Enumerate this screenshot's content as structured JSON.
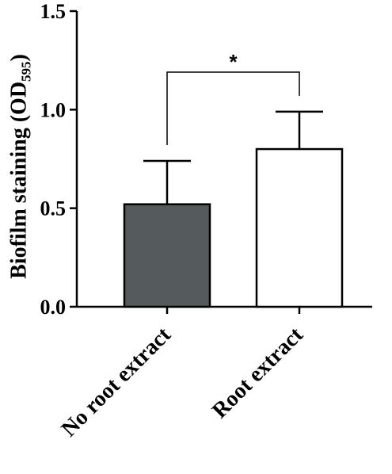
{
  "chart_data": {
    "type": "bar",
    "ylabel": "Biofilm staining (OD",
    "ylabel_subscript": "595",
    "ylabel_close": ")",
    "categories": [
      "No root extract",
      "Root extract"
    ],
    "values": [
      0.52,
      0.8
    ],
    "error_upper": [
      0.22,
      0.19
    ],
    "bar_colors": [
      "#555a5c",
      "#ffffff"
    ],
    "ylim": [
      0,
      1.5
    ],
    "yticks": [
      0.0,
      0.5,
      1.0,
      1.5
    ],
    "ytick_labels": [
      "0.0",
      "0.5",
      "1.0",
      "1.5"
    ],
    "significance": {
      "between": [
        0,
        1
      ],
      "label": "*"
    },
    "grid": false
  }
}
